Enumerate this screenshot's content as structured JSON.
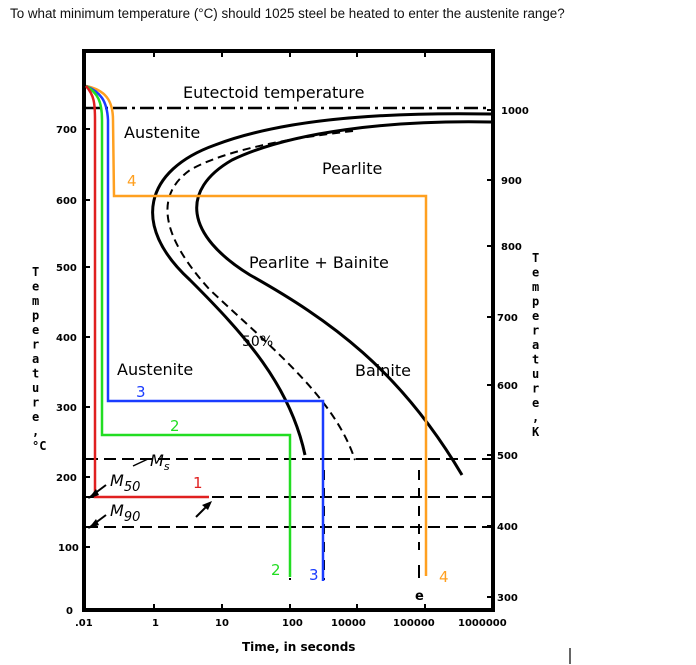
{
  "question": "To what minimum temperature (°C) should 1025 steel be heated to enter the austenite range?",
  "diagram": {
    "labels": {
      "eutectoid": "Eutectoid temperature",
      "austenite_top": "Austenite",
      "pearlite": "Pearlite",
      "pearlite_bainite": "Pearlite + Bainite",
      "fifty_percent": "50%",
      "austenite_mid": "Austenite",
      "bainite": "Bainite",
      "ms_main": "M",
      "ms_sub": "s",
      "m50_main": "M",
      "m50_sub": "50",
      "m90_main": "M",
      "m90_sub": "90",
      "e_label": "e",
      "stray_mark": "I"
    },
    "path_numbers": [
      "1",
      "2",
      "3",
      "4"
    ],
    "path_colors": {
      "1": "#e02020",
      "2": "#22dd22",
      "3": "#1a3cff",
      "4": "#ffa020"
    },
    "left_axis": {
      "title": "Temperature , °C",
      "title_letters": [
        "T",
        "e",
        "m",
        "p",
        "e",
        "r",
        "a",
        "t",
        "u",
        "r",
        "e",
        ",",
        "°C"
      ],
      "ticks": [
        "0",
        "100",
        "200",
        "300",
        "400",
        "500",
        "600",
        "700"
      ]
    },
    "right_axis": {
      "title": "Temperature , K",
      "title_letters": [
        "T",
        "e",
        "m",
        "p",
        "e",
        "r",
        "a",
        "t",
        "u",
        "r",
        "e",
        ",",
        "K"
      ],
      "ticks": [
        "300",
        "400",
        "500",
        "600",
        "700",
        "800",
        "900",
        "1000"
      ]
    },
    "x_axis": {
      "title": "Time, in seconds",
      "ticks": [
        ".01",
        "1",
        "10",
        "100",
        "10000",
        "100000",
        "1000000"
      ]
    }
  }
}
